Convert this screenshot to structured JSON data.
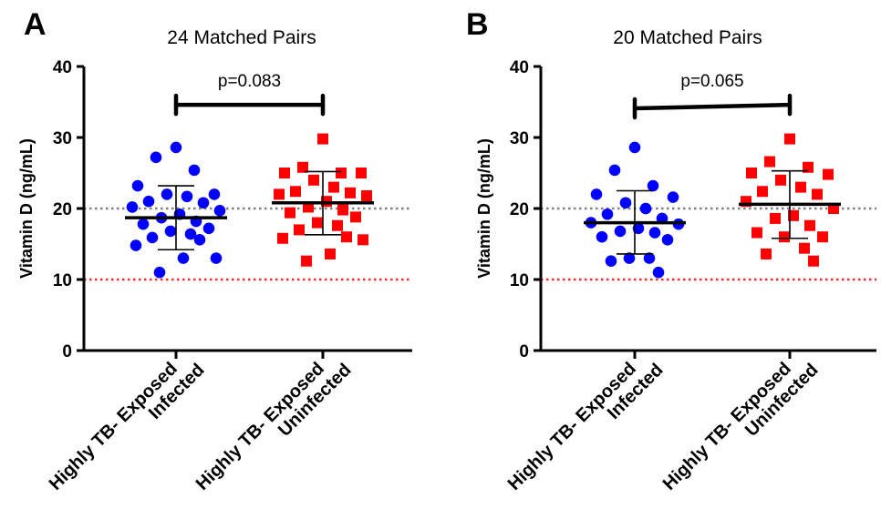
{
  "chart_data": [
    {
      "panel_letter": "A",
      "type": "scatter",
      "title": "24 Matched Pairs",
      "ylabel": "Vitamin D (ng/mL)",
      "ylim": [
        0,
        40
      ],
      "yticks": [
        "0",
        "10",
        "20",
        "30",
        "40"
      ],
      "reference_lines": [
        {
          "y": 20,
          "color": "#808080",
          "style": "dotted"
        },
        {
          "y": 10,
          "color": "#ff2a2a",
          "style": "dotted"
        }
      ],
      "categories": [
        {
          "line1": "Highly TB- Exposed",
          "line2": "Infected"
        },
        {
          "line1": "Highly TB- Exposed",
          "line2": "Uninfected"
        }
      ],
      "groups": [
        {
          "marker": "circle",
          "color": "#0000ff",
          "mean": 18.7,
          "sd_low": 14.2,
          "sd_high": 23.2,
          "values": [
            28.6,
            27.2,
            25.4,
            23.2,
            22.0,
            22.0,
            21.7,
            21.0,
            20.8,
            20.2,
            19.7,
            19.2,
            18.7,
            18.2,
            17.8,
            17.2,
            16.8,
            16.4,
            15.9,
            15.6,
            14.8,
            13.0,
            13.0,
            11.0
          ]
        },
        {
          "marker": "square",
          "color": "#ff0000",
          "mean": 20.8,
          "sd_low": 16.3,
          "sd_high": 25.2,
          "values": [
            29.8,
            25.8,
            25.0,
            25.0,
            25.0,
            24.0,
            23.0,
            22.4,
            22.2,
            22.0,
            21.8,
            21.0,
            20.2,
            19.8,
            19.4,
            18.8,
            18.0,
            17.6,
            17.0,
            16.0,
            15.8,
            15.6,
            13.6,
            12.6
          ]
        }
      ],
      "significance": {
        "label": "p=0.083",
        "y_left": 34.6,
        "y_right": 34.6
      }
    },
    {
      "panel_letter": "B",
      "type": "scatter",
      "title": "20 Matched Pairs",
      "ylabel": "Vitamin D (ng/mL)",
      "ylim": [
        0,
        40
      ],
      "yticks": [
        "0",
        "10",
        "20",
        "30",
        "40"
      ],
      "reference_lines": [
        {
          "y": 20,
          "color": "#808080",
          "style": "dotted"
        },
        {
          "y": 10,
          "color": "#ff2a2a",
          "style": "dotted"
        }
      ],
      "categories": [
        {
          "line1": "Highly TB- Exposed",
          "line2": "Infected"
        },
        {
          "line1": "Highly TB- Exposed",
          "line2": "Uninfected"
        }
      ],
      "groups": [
        {
          "marker": "circle",
          "color": "#0000ff",
          "mean": 18.0,
          "sd_low": 13.6,
          "sd_high": 22.5,
          "values": [
            28.6,
            25.4,
            23.2,
            22.0,
            21.6,
            20.8,
            20.0,
            19.2,
            18.6,
            18.0,
            17.8,
            17.2,
            16.8,
            16.6,
            16.0,
            15.6,
            13.0,
            13.0,
            12.6,
            11.0
          ]
        },
        {
          "marker": "square",
          "color": "#ff0000",
          "mean": 20.6,
          "sd_low": 15.8,
          "sd_high": 25.3,
          "values": [
            29.8,
            26.6,
            25.8,
            25.0,
            24.8,
            24.0,
            23.0,
            22.4,
            22.0,
            21.0,
            20.0,
            19.0,
            18.6,
            17.6,
            16.6,
            16.0,
            16.0,
            14.4,
            13.6,
            12.6
          ]
        }
      ],
      "significance": {
        "label": "p=0.065",
        "y_left": 34.1,
        "y_right": 34.6
      }
    }
  ]
}
